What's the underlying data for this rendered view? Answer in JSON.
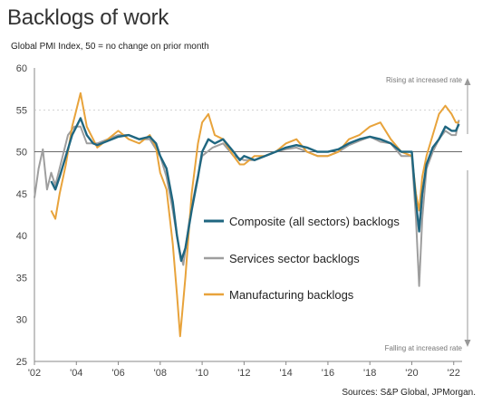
{
  "title": "Backlogs of work",
  "subtitle": "Global PMI Index, 50 = no change on prior month",
  "source": "Sources: S&P Global, JPMorgan.",
  "colors": {
    "composite": "#1f6680",
    "services": "#9e9e9e",
    "manufacturing": "#e8a33b"
  },
  "chart_data": {
    "type": "line",
    "ylim": [
      25,
      60
    ],
    "xlim": [
      2002,
      2022.4
    ],
    "yticks": [
      "25",
      "30",
      "35",
      "40",
      "45",
      "50",
      "55",
      "60"
    ],
    "xticks": [
      "'02",
      "'04",
      "'06",
      "'08",
      "'10",
      "'12",
      "'14",
      "'16",
      "'18",
      "'20",
      "'22"
    ],
    "reference_line": 50,
    "annotations": {
      "top": "Rising at increased rate",
      "bottom": "Falling at increased rate"
    },
    "series": [
      {
        "name": "Composite (all sectors) backlogs",
        "key": "composite",
        "x": [
          2002.8,
          2003.0,
          2003.2,
          2003.5,
          2003.8,
          2004.0,
          2004.2,
          2004.5,
          2004.8,
          2005.0,
          2005.5,
          2006.0,
          2006.5,
          2007.0,
          2007.5,
          2007.8,
          2008.0,
          2008.3,
          2008.6,
          2008.8,
          2009.0,
          2009.2,
          2009.5,
          2009.8,
          2010.0,
          2010.3,
          2010.6,
          2011.0,
          2011.5,
          2011.8,
          2012.0,
          2012.5,
          2013.0,
          2013.5,
          2014.0,
          2014.5,
          2015.0,
          2015.5,
          2016.0,
          2016.5,
          2017.0,
          2017.5,
          2018.0,
          2018.5,
          2019.0,
          2019.5,
          2020.0,
          2020.2,
          2020.35,
          2020.5,
          2020.7,
          2021.0,
          2021.3,
          2021.6,
          2021.9,
          2022.1,
          2022.25
        ],
        "y": [
          46.5,
          45.5,
          47.0,
          49.5,
          52.0,
          53.0,
          54.0,
          52.0,
          51.0,
          50.8,
          51.3,
          51.8,
          52.0,
          51.5,
          51.8,
          51.0,
          49.5,
          48.0,
          44.0,
          40.0,
          37.0,
          38.5,
          43.0,
          47.0,
          50.0,
          51.5,
          51.0,
          51.5,
          50.0,
          49.0,
          49.5,
          49.0,
          49.5,
          50.0,
          50.5,
          50.8,
          50.5,
          50.0,
          50.0,
          50.3,
          51.0,
          51.5,
          51.8,
          51.5,
          51.0,
          50.0,
          50.0,
          44.0,
          40.5,
          45.0,
          48.5,
          50.5,
          51.5,
          53.0,
          52.5,
          52.5,
          53.3
        ]
      },
      {
        "name": "Services sector backlogs",
        "key": "services",
        "x": [
          2002.0,
          2002.2,
          2002.4,
          2002.6,
          2002.8,
          2003.0,
          2003.3,
          2003.6,
          2003.9,
          2004.2,
          2004.5,
          2005.0,
          2005.5,
          2006.0,
          2006.5,
          2007.0,
          2007.5,
          2008.0,
          2008.3,
          2008.6,
          2008.9,
          2009.1,
          2009.4,
          2009.7,
          2010.0,
          2010.5,
          2011.0,
          2011.5,
          2012.0,
          2012.5,
          2013.0,
          2013.5,
          2014.0,
          2014.5,
          2015.0,
          2015.5,
          2016.0,
          2016.5,
          2017.0,
          2017.5,
          2018.0,
          2018.5,
          2019.0,
          2019.5,
          2020.0,
          2020.2,
          2020.35,
          2020.5,
          2020.7,
          2021.0,
          2021.3,
          2021.6,
          2021.9,
          2022.1,
          2022.25
        ],
        "y": [
          44.5,
          48.0,
          50.3,
          45.5,
          47.5,
          46.0,
          49.0,
          52.0,
          53.0,
          53.0,
          51.0,
          51.0,
          51.5,
          52.0,
          52.0,
          51.5,
          51.5,
          49.5,
          47.0,
          43.0,
          38.5,
          36.5,
          42.0,
          46.0,
          49.5,
          50.5,
          51.0,
          49.5,
          49.0,
          49.0,
          49.5,
          50.0,
          50.3,
          50.5,
          50.0,
          49.5,
          49.5,
          50.0,
          50.8,
          51.3,
          51.8,
          51.2,
          51.0,
          49.5,
          49.5,
          42.0,
          34.0,
          42.0,
          48.0,
          50.0,
          51.5,
          52.5,
          52.0,
          52.0,
          53.8
        ]
      },
      {
        "name": "Manufacturing backlogs",
        "key": "manufacturing",
        "x": [
          2002.8,
          2003.0,
          2003.2,
          2003.5,
          2003.8,
          2004.0,
          2004.2,
          2004.5,
          2004.8,
          2005.0,
          2005.5,
          2006.0,
          2006.5,
          2007.0,
          2007.5,
          2007.8,
          2008.0,
          2008.3,
          2008.6,
          2008.8,
          2008.95,
          2009.2,
          2009.5,
          2009.8,
          2010.0,
          2010.3,
          2010.6,
          2011.0,
          2011.5,
          2011.8,
          2012.0,
          2012.5,
          2013.0,
          2013.5,
          2014.0,
          2014.5,
          2015.0,
          2015.5,
          2016.0,
          2016.5,
          2017.0,
          2017.5,
          2018.0,
          2018.5,
          2019.0,
          2019.5,
          2020.0,
          2020.2,
          2020.35,
          2020.5,
          2020.7,
          2021.0,
          2021.3,
          2021.6,
          2021.9,
          2022.1,
          2022.25
        ],
        "y": [
          43.0,
          42.0,
          45.0,
          48.5,
          53.0,
          55.0,
          57.0,
          53.0,
          51.5,
          50.5,
          51.5,
          52.5,
          51.5,
          51.0,
          52.0,
          50.5,
          47.5,
          45.5,
          39.0,
          33.0,
          28.0,
          35.0,
          45.0,
          51.0,
          53.5,
          54.5,
          52.0,
          51.5,
          49.5,
          48.5,
          48.5,
          49.5,
          49.5,
          50.0,
          51.0,
          51.5,
          50.0,
          49.5,
          49.5,
          50.0,
          51.5,
          52.0,
          53.0,
          53.5,
          51.5,
          50.0,
          49.5,
          45.0,
          43.0,
          47.0,
          49.5,
          52.0,
          54.5,
          55.5,
          54.5,
          53.5,
          53.5
        ]
      }
    ],
    "legend_order": [
      "composite",
      "services",
      "manufacturing"
    ]
  }
}
